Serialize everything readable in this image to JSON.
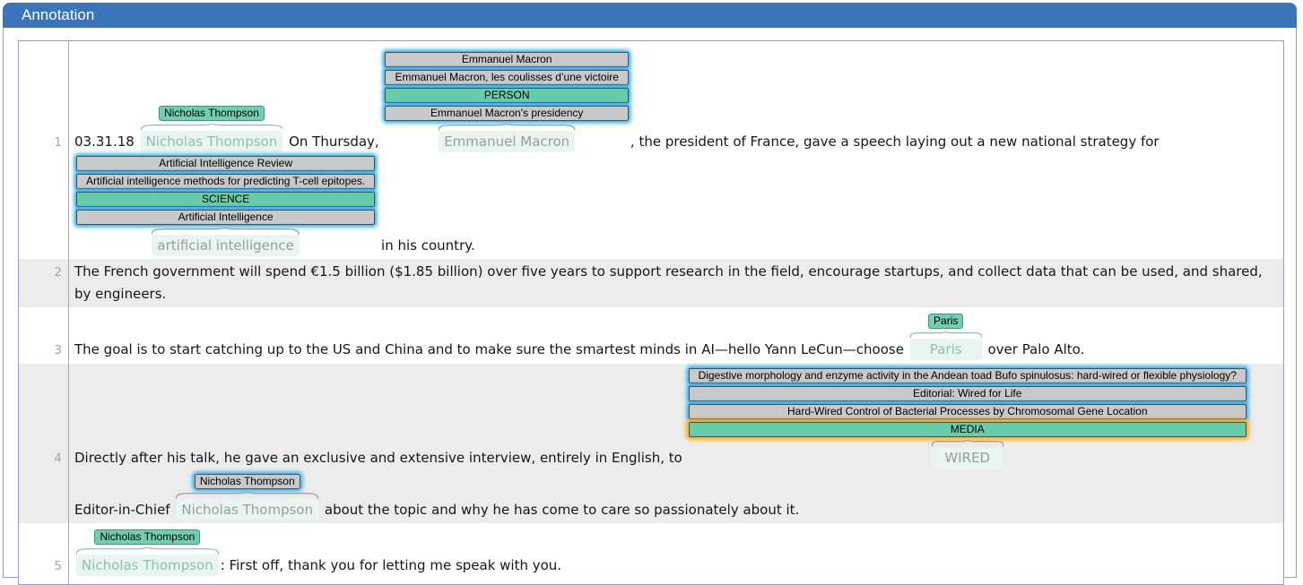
{
  "header": {
    "title": "Annotation"
  },
  "colors": {
    "titlebar_blue": "#3a74ba",
    "panel_border": "#9297ef",
    "gutter_line": "#ababab",
    "shaded_row": "#ececec",
    "entity_highlight": "#e8f5f0",
    "label_teal": "#66cdaa",
    "label_gray": "#c9c9c9",
    "glow_blue": "#2eb0ee",
    "glow_orange": "#ffac12",
    "line_number_gray": "#a5a5a5"
  },
  "rows": [
    {
      "number": "1",
      "shaded": false,
      "segments": [
        {
          "t": "text",
          "text": "03.31.18 "
        },
        {
          "t": "entity",
          "text": "Nicholas Thompson",
          "label": {
            "text": "Nicholas Thompson",
            "style": "teal"
          }
        },
        {
          "t": "text",
          "text": " On Thursday, "
        },
        {
          "t": "entity",
          "text": "Emmanuel Macron",
          "stack": [
            {
              "text": "Emmanuel Macron",
              "style": "gray",
              "glow": "blue"
            },
            {
              "text": "Emmanuel Macron, les coulisses d’une victoire",
              "style": "gray",
              "glow": "blue"
            },
            {
              "text": "PERSON",
              "style": "teal",
              "glow": "blue"
            },
            {
              "text": "Emmanuel Macron's presidency",
              "style": "gray",
              "glow": "blue"
            }
          ]
        },
        {
          "t": "text",
          "text": ", the president of France, gave a speech laying out a new national strategy for "
        },
        {
          "t": "entity",
          "text": "artificial intelligence",
          "stack": [
            {
              "text": "Artificial Intelligence Review",
              "style": "gray",
              "glow": "blue"
            },
            {
              "text": "Artificial intelligence methods for predicting T-cell epitopes.",
              "style": "gray",
              "glow": "blue"
            },
            {
              "text": "SCIENCE",
              "style": "teal",
              "glow": "blue"
            },
            {
              "text": "Artificial Intelligence",
              "style": "gray",
              "glow": "blue"
            }
          ]
        },
        {
          "t": "text",
          "text": " in his country."
        }
      ]
    },
    {
      "number": "2",
      "shaded": true,
      "segments": [
        {
          "t": "text",
          "text": "The French government will spend €1.5 billion ($1.85 billion) over five years to support research in the field, encourage startups, and collect data that can be used, and shared, by engineers."
        }
      ]
    },
    {
      "number": "3",
      "shaded": false,
      "segments": [
        {
          "t": "text",
          "text": "The goal is to start catching up to the US and China and to make sure the smartest minds in AI—hello Yann LeCun—choose "
        },
        {
          "t": "entity",
          "text": "Paris",
          "label": {
            "text": "Paris",
            "style": "teal"
          }
        },
        {
          "t": "text",
          "text": " over Palo Alto."
        }
      ]
    },
    {
      "number": "4",
      "shaded": true,
      "segments": [
        {
          "t": "text",
          "text": "Directly after his talk, he gave an exclusive and extensive interview, entirely in English, to "
        },
        {
          "t": "entity",
          "text": "WIRED",
          "stack": [
            {
              "text": "Digestive morphology and enzyme activity in the Andean toad Bufo spinulosus: hard-wired or flexible physiology?",
              "style": "gray",
              "glow": "blue"
            },
            {
              "text": "Editorial: Wired for Life",
              "style": "gray",
              "glow": "blue"
            },
            {
              "text": "Hard-Wired Control of Bacterial Processes by Chromosomal Gene Location",
              "style": "gray",
              "glow": "blue"
            },
            {
              "text": "MEDIA",
              "style": "teal",
              "glow": "orange"
            }
          ]
        },
        {
          "t": "text",
          "text": " Editor-in-Chief "
        },
        {
          "t": "entity",
          "text": "Nicholas Thompson",
          "label": {
            "text": "Nicholas Thompson",
            "style": "gray",
            "glow": "blue"
          }
        },
        {
          "t": "text",
          "text": " about the topic and why he has come to care so passionately about it."
        }
      ]
    },
    {
      "number": "5",
      "shaded": false,
      "segments": [
        {
          "t": "entity",
          "text": "Nicholas Thompson",
          "label": {
            "text": "Nicholas Thompson",
            "style": "teal"
          }
        },
        {
          "t": "text",
          "text": ": First off, thank you for letting me speak with you."
        }
      ]
    }
  ]
}
